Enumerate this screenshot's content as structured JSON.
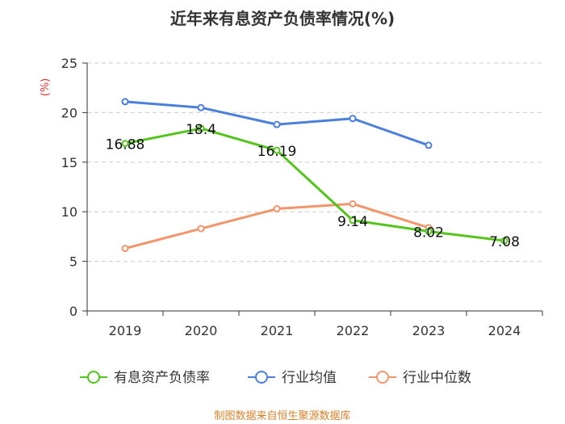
{
  "chart_data": {
    "type": "line",
    "title": "近年来有息资产负债率情况(%)",
    "ylabel": "(%)",
    "xlabel": "",
    "categories": [
      "2019",
      "2020",
      "2021",
      "2022",
      "2023",
      "2024"
    ],
    "ylim": [
      0,
      25
    ],
    "yticks": [
      0,
      5,
      10,
      15,
      20,
      25
    ],
    "grid": true,
    "legend_position": "bottom",
    "series": [
      {
        "name": "有息资产负债率",
        "color": "#52c41a",
        "values": [
          16.88,
          18.4,
          16.19,
          9.14,
          8.02,
          7.08
        ],
        "labels": [
          "16.88",
          "18.4",
          "16.19",
          "9.14",
          "8.02",
          "7.08"
        ]
      },
      {
        "name": "行业均值",
        "color": "#4a7fdc",
        "values": [
          21.1,
          20.5,
          18.8,
          19.4,
          16.7,
          null
        ]
      },
      {
        "name": "行业中位数",
        "color": "#f3956a",
        "values": [
          6.3,
          8.3,
          10.3,
          10.8,
          8.4,
          null
        ]
      }
    ]
  },
  "source": "制图数据来自恒生聚源数据库"
}
